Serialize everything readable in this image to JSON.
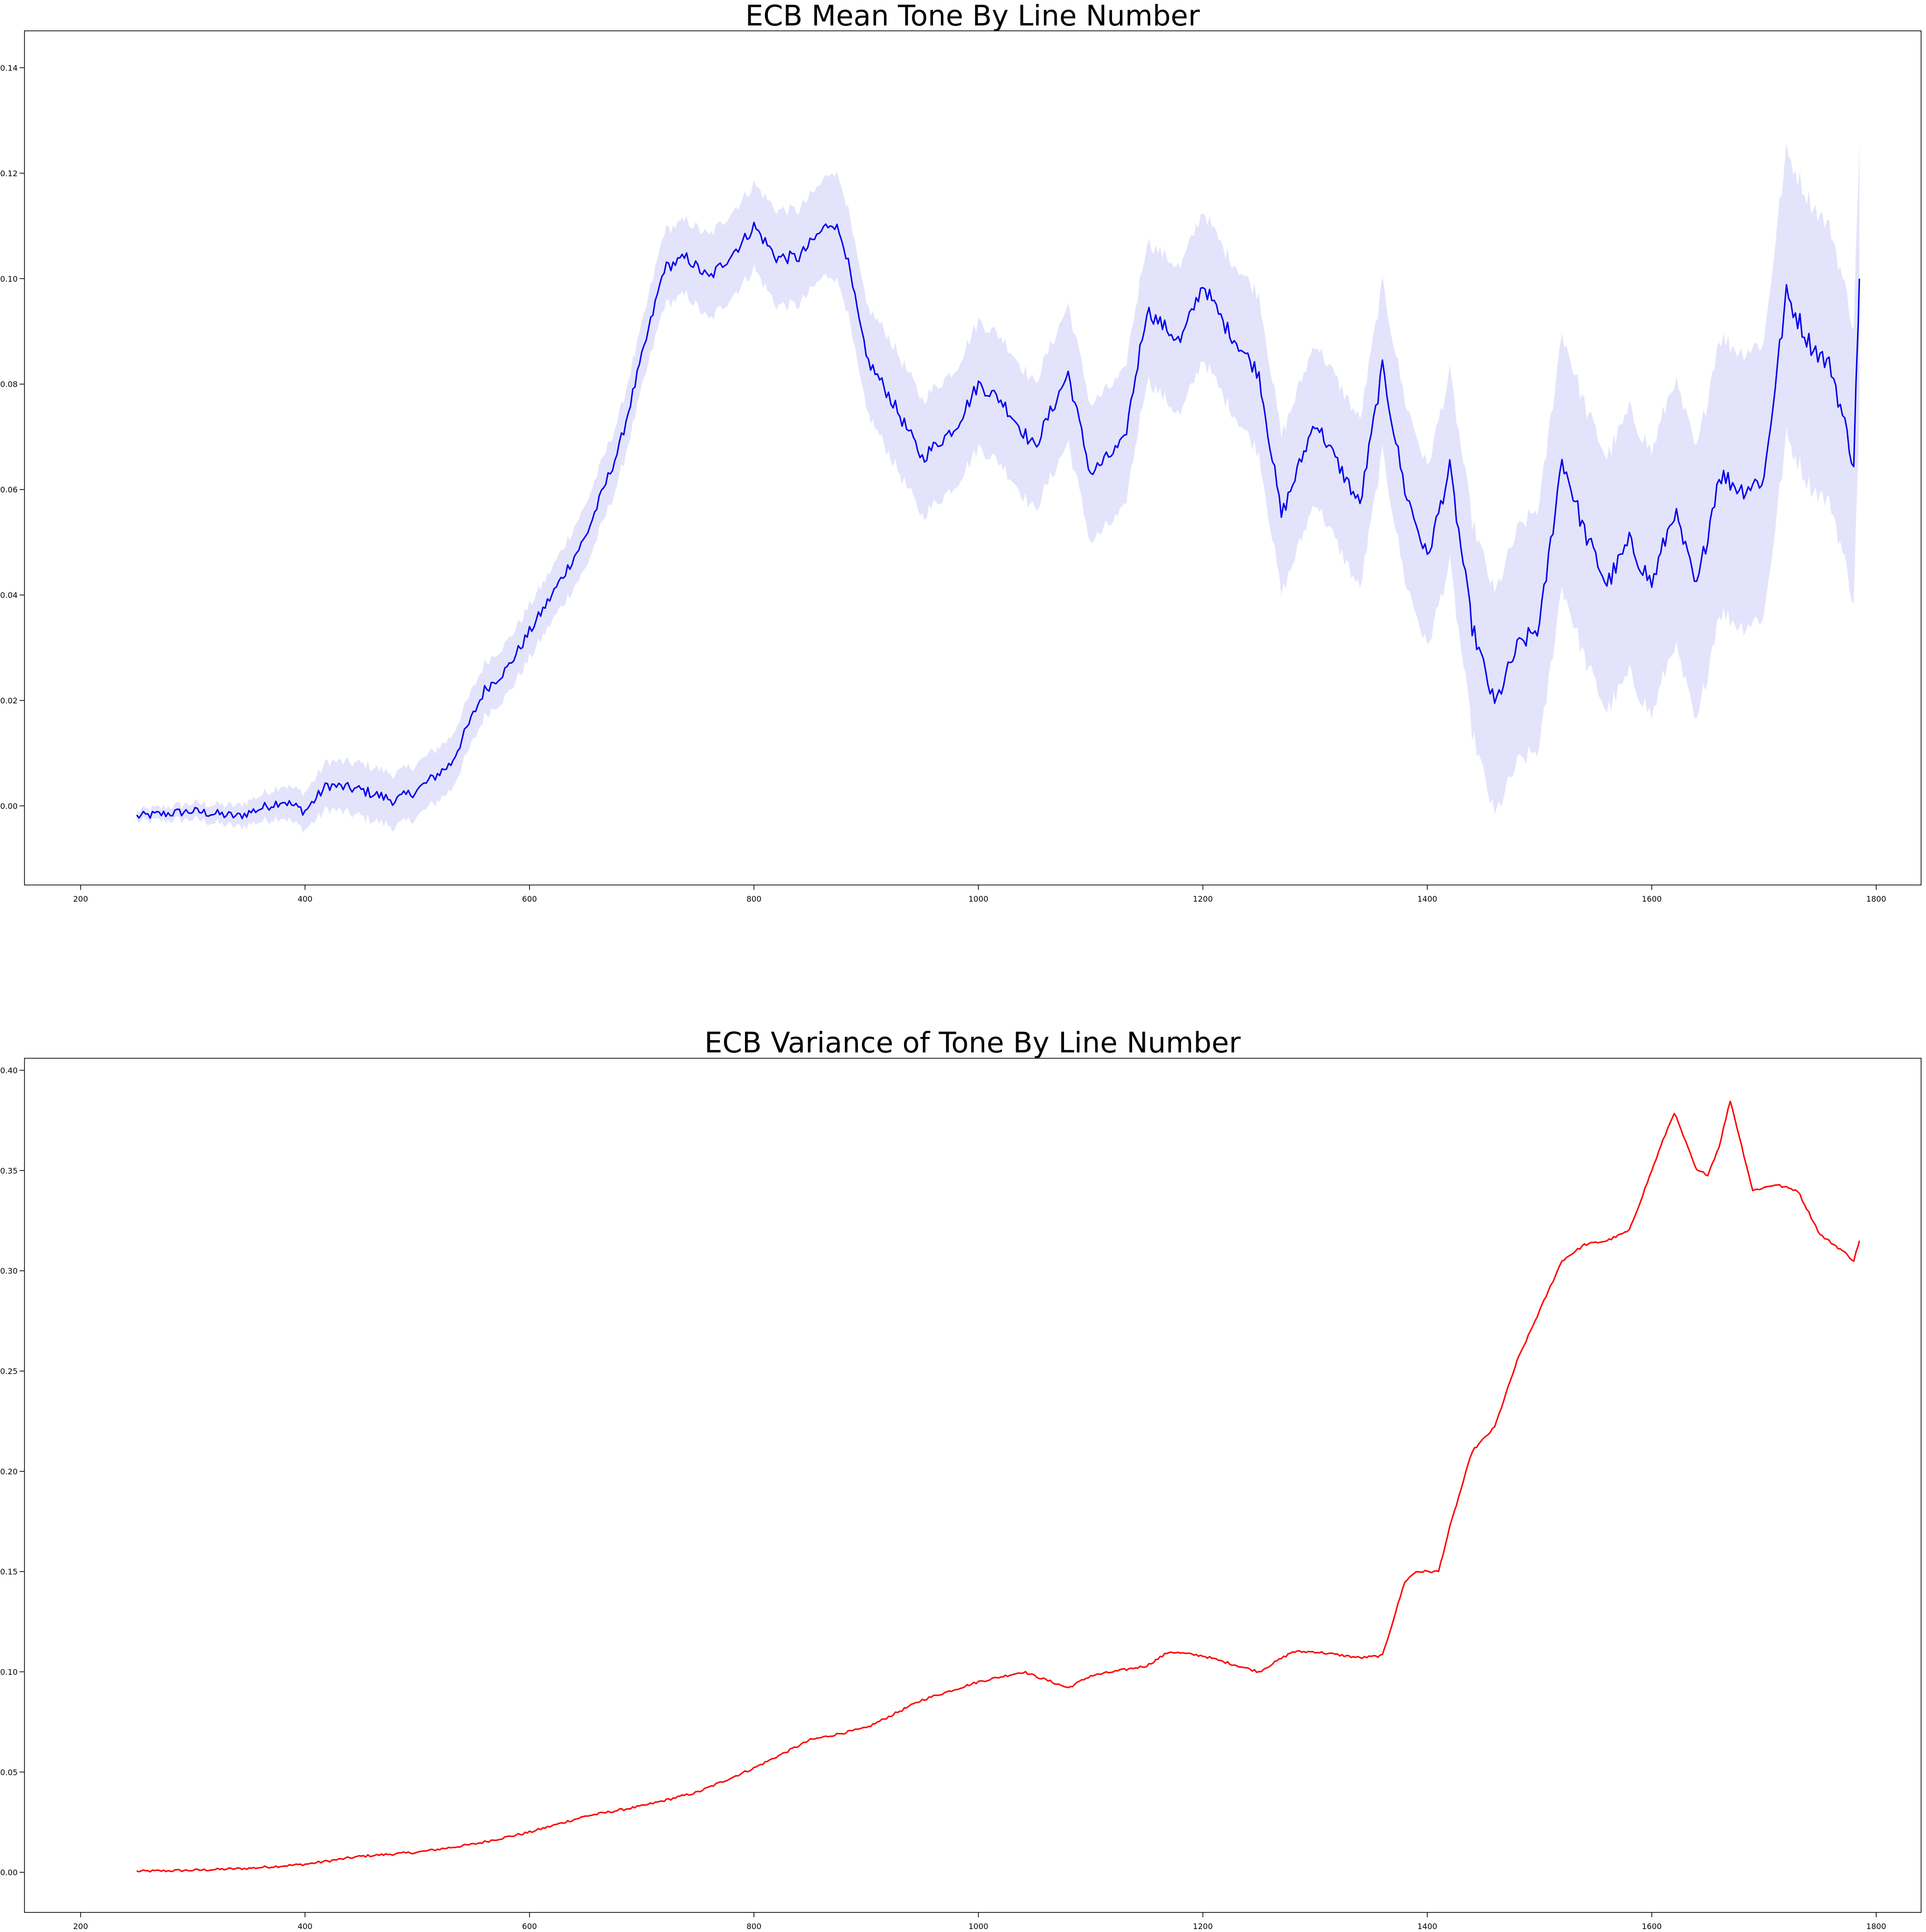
{
  "chart_data": [
    {
      "type": "line",
      "title": "ECB Mean Tone By Line Number",
      "xlabel": "",
      "ylabel": "",
      "xlim": [
        150,
        1840
      ],
      "ylim": [
        -0.015,
        0.147
      ],
      "xticks": [
        200,
        400,
        600,
        800,
        1000,
        1200,
        1400,
        1600,
        1800
      ],
      "yticks": [
        0.0,
        0.02,
        0.04,
        0.06,
        0.08,
        0.1,
        0.12,
        0.14
      ],
      "ytick_labels": [
        "0.00",
        "0.02",
        "0.04",
        "0.06",
        "0.08",
        "0.10",
        "0.12",
        "0.14"
      ],
      "grid": false,
      "legend": "none",
      "colors": {
        "line": "#0000ee",
        "band": "#e3e3fb"
      },
      "series": [
        {
          "x": [
            250,
            300,
            340,
            380,
            400,
            420,
            450,
            480,
            500,
            530,
            560,
            580,
            600,
            620,
            650,
            680,
            700,
            720,
            740,
            760,
            790,
            800,
            820,
            840,
            860,
            870,
            880,
            900,
            920,
            950,
            980,
            1000,
            1020,
            1050,
            1080,
            1100,
            1130,
            1150,
            1180,
            1200,
            1220,
            1250,
            1270,
            1300,
            1340,
            1360,
            1380,
            1400,
            1420,
            1440,
            1460,
            1480,
            1500,
            1520,
            1540,
            1560,
            1580,
            1600,
            1620,
            1640,
            1660,
            1680,
            1700,
            1710,
            1720,
            1740,
            1760,
            1780,
            1785
          ],
          "y": [
            -0.002,
            -0.001,
            -0.002,
            0.001,
            -0.001,
            0.004,
            0.003,
            0.001,
            0.003,
            0.008,
            0.022,
            0.026,
            0.033,
            0.04,
            0.051,
            0.068,
            0.085,
            0.102,
            0.104,
            0.1,
            0.107,
            0.11,
            0.104,
            0.104,
            0.109,
            0.111,
            0.107,
            0.085,
            0.078,
            0.066,
            0.072,
            0.08,
            0.077,
            0.068,
            0.082,
            0.063,
            0.069,
            0.094,
            0.088,
            0.099,
            0.091,
            0.082,
            0.055,
            0.073,
            0.057,
            0.083,
            0.06,
            0.047,
            0.064,
            0.034,
            0.019,
            0.03,
            0.034,
            0.066,
            0.052,
            0.042,
            0.05,
            0.042,
            0.056,
            0.041,
            0.063,
            0.06,
            0.062,
            0.08,
            0.097,
            0.088,
            0.083,
            0.065,
            0.1
          ],
          "band_halfwidth": [
            0.001,
            0.0015,
            0.002,
            0.003,
            0.0035,
            0.0045,
            0.005,
            0.005,
            0.005,
            0.005,
            0.005,
            0.005,
            0.005,
            0.005,
            0.006,
            0.006,
            0.006,
            0.007,
            0.007,
            0.008,
            0.008,
            0.008,
            0.009,
            0.009,
            0.009,
            0.01,
            0.01,
            0.01,
            0.011,
            0.011,
            0.011,
            0.012,
            0.012,
            0.012,
            0.013,
            0.013,
            0.013,
            0.013,
            0.014,
            0.014,
            0.014,
            0.015,
            0.015,
            0.015,
            0.016,
            0.016,
            0.017,
            0.017,
            0.018,
            0.02,
            0.021,
            0.022,
            0.023,
            0.024,
            0.024,
            0.024,
            0.025,
            0.025,
            0.025,
            0.026,
            0.026,
            0.026,
            0.026,
            0.027,
            0.027,
            0.027,
            0.026,
            0.026,
            0.026
          ]
        }
      ]
    },
    {
      "type": "line",
      "title": "ECB Variance of Tone By Line Number",
      "xlabel": "",
      "ylabel": "",
      "xlim": [
        150,
        1840
      ],
      "ylim": [
        -0.02,
        0.406
      ],
      "xticks": [
        200,
        400,
        600,
        800,
        1000,
        1200,
        1400,
        1600,
        1800
      ],
      "yticks": [
        0.0,
        0.05,
        0.1,
        0.15,
        0.2,
        0.25,
        0.3,
        0.35,
        0.4
      ],
      "ytick_labels": [
        "0.00",
        "0.05",
        "0.10",
        "0.15",
        "0.20",
        "0.25",
        "0.30",
        "0.35",
        "0.40"
      ],
      "grid": false,
      "legend": "none",
      "colors": {
        "line": "#ff0000"
      },
      "series": [
        {
          "x": [
            250,
            300,
            350,
            400,
            450,
            500,
            550,
            600,
            650,
            700,
            750,
            800,
            850,
            900,
            950,
            1000,
            1040,
            1080,
            1100,
            1150,
            1170,
            1200,
            1250,
            1280,
            1300,
            1340,
            1360,
            1380,
            1390,
            1410,
            1420,
            1440,
            1460,
            1480,
            1500,
            1520,
            1540,
            1560,
            1580,
            1600,
            1610,
            1620,
            1640,
            1650,
            1660,
            1670,
            1690,
            1710,
            1730,
            1750,
            1770,
            1780,
            1785
          ],
          "y": [
            0.0005,
            0.001,
            0.002,
            0.004,
            0.008,
            0.01,
            0.014,
            0.02,
            0.028,
            0.033,
            0.04,
            0.052,
            0.066,
            0.072,
            0.086,
            0.095,
            0.1,
            0.092,
            0.098,
            0.103,
            0.11,
            0.108,
            0.1,
            0.11,
            0.11,
            0.107,
            0.108,
            0.145,
            0.15,
            0.15,
            0.172,
            0.21,
            0.222,
            0.255,
            0.28,
            0.305,
            0.313,
            0.315,
            0.32,
            0.35,
            0.365,
            0.379,
            0.35,
            0.348,
            0.362,
            0.385,
            0.34,
            0.343,
            0.34,
            0.318,
            0.31,
            0.305,
            0.315
          ]
        }
      ]
    }
  ]
}
